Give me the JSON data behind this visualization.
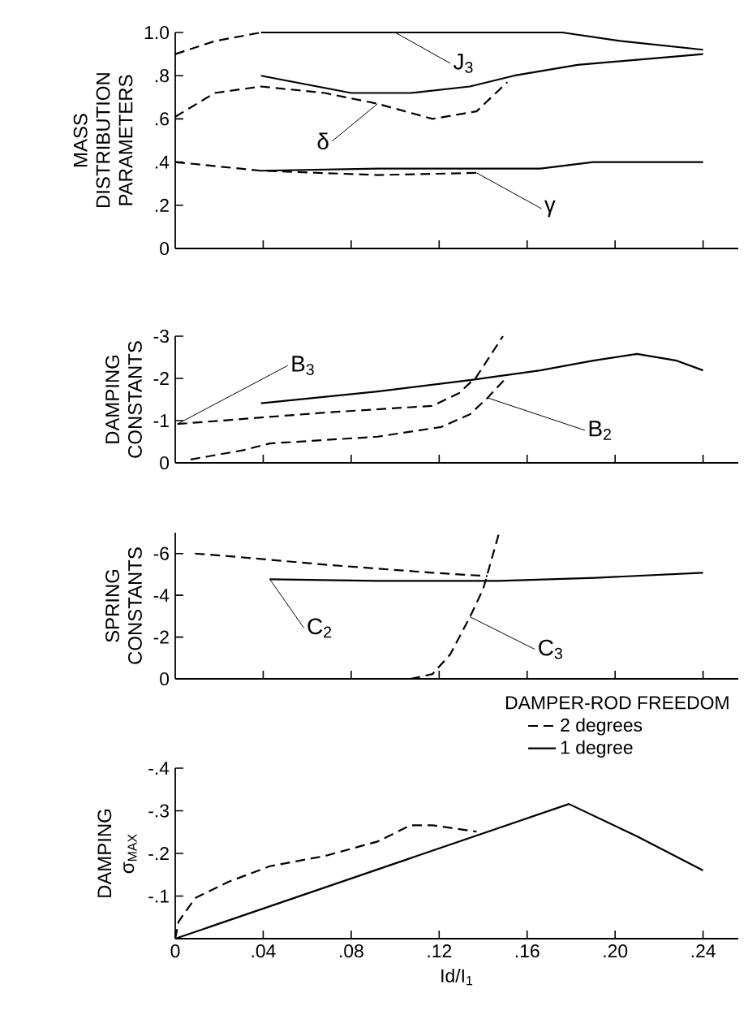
{
  "chart_data": [
    {
      "type": "line",
      "ylabel": "MASS DISTRIBUTION PARAMETERS",
      "xlim": [
        0,
        0.256
      ],
      "xticks": [
        {
          "value": 0.04,
          "label": null
        },
        {
          "value": 0.08,
          "label": null
        },
        {
          "value": 0.12,
          "label": null
        },
        {
          "value": 0.16,
          "label": null
        },
        {
          "value": 0.2,
          "label": null
        },
        {
          "value": 0.24,
          "label": null
        }
      ],
      "ylim": [
        0,
        1.0
      ],
      "yticks": [
        0,
        {
          "value": 0.2,
          "label": ".2"
        },
        {
          "value": 0.4,
          "label": ".4"
        },
        {
          "value": 0.6,
          "label": ".6"
        },
        {
          "value": 0.8,
          "label": ".8"
        },
        {
          "value": 1.0,
          "label": "1.0"
        }
      ],
      "tick_labels": "y",
      "series": [
        {
          "color": "#000000",
          "line_style": "dashed",
          "x": [
            0,
            0.018,
            0.039
          ],
          "values": [
            0.9,
            0.96,
            1.0
          ]
        },
        {
          "color": "#000000",
          "line_style": "solid",
          "x": [
            0.039,
            0.176,
            0.203,
            0.24
          ],
          "values": [
            1.0,
            1.0,
            0.96,
            0.92
          ]
        },
        {
          "color": "#000000",
          "line_style": "solid",
          "x": [
            0.039,
            0.08,
            0.107,
            0.134,
            0.154,
            0.183,
            0.24
          ],
          "values": [
            0.8,
            0.72,
            0.72,
            0.75,
            0.8,
            0.85,
            0.9
          ]
        },
        {
          "color": "#000000",
          "line_style": "dashed",
          "x": [
            0,
            0.018,
            0.039,
            0.068,
            0.092,
            0.117,
            0.137,
            0.151
          ],
          "values": [
            0.61,
            0.72,
            0.75,
            0.72,
            0.67,
            0.6,
            0.635,
            0.77
          ]
        },
        {
          "color": "#000000",
          "line_style": "solid",
          "x": [
            0.039,
            0.092,
            0.166,
            0.19,
            0.24
          ],
          "values": [
            0.36,
            0.37,
            0.37,
            0.4,
            0.4
          ]
        },
        {
          "color": "#000000",
          "line_style": "dashed",
          "x": [
            0,
            0.039,
            0.092,
            0.137
          ],
          "values": [
            0.4,
            0.36,
            0.34,
            0.35
          ]
        }
      ],
      "annotations": [
        {
          "text": "J$_{3}$",
          "x": 0.1,
          "y": 1.0
        },
        {
          "text": "δ",
          "x": 0.092,
          "y": 0.67
        },
        {
          "text": "γ",
          "x": 0.137,
          "y": 0.35
        }
      ]
    },
    {
      "type": "line",
      "ylabel": "DAMPING CONSTANTS",
      "xlim": [
        0,
        0.256
      ],
      "xticks": [
        {
          "value": 0.04,
          "label": null
        },
        {
          "value": 0.08,
          "label": null
        },
        {
          "value": 0.12,
          "label": null
        },
        {
          "value": 0.16,
          "label": null
        },
        {
          "value": 0.2,
          "label": null
        },
        {
          "value": 0.24,
          "label": null
        }
      ],
      "ylim": [
        0,
        -3
      ],
      "yticks": [
        0,
        -1,
        -2,
        -3
      ],
      "tick_labels": "y",
      "series": [
        {
          "color": "#000000",
          "line_style": "dashed",
          "x": [
            0.001,
            0.068,
            0.117,
            0.129,
            0.137,
            0.149
          ],
          "values": [
            -0.92,
            -1.19,
            -1.35,
            -1.65,
            -2.04,
            -3.0
          ]
        },
        {
          "color": "#000000",
          "line_style": "solid",
          "x": [
            0.039,
            0.092,
            0.134,
            0.166,
            0.19,
            0.21,
            0.228,
            0.24
          ],
          "values": [
            -1.41,
            -1.69,
            -1.96,
            -2.19,
            -2.42,
            -2.58,
            -2.42,
            -2.19
          ]
        },
        {
          "color": "#000000",
          "line_style": "dashed",
          "x": [
            0.007,
            0.031,
            0.043,
            0.092,
            0.121,
            0.134,
            0.142,
            0.151
          ],
          "values": [
            -0.08,
            -0.3,
            -0.46,
            -0.62,
            -0.85,
            -1.15,
            -1.54,
            -2.04
          ]
        }
      ],
      "annotations": [
        {
          "text": "B$_{3}$",
          "x": 0.001,
          "y": -0.92
        },
        {
          "text": "B$_{2}$",
          "x": 0.142,
          "y": -1.54
        }
      ]
    },
    {
      "type": "line",
      "ylabel": "SPRING CONSTANTS",
      "xlim": [
        0,
        0.256
      ],
      "xticks": [
        {
          "value": 0.04,
          "label": null
        },
        {
          "value": 0.08,
          "label": null
        },
        {
          "value": 0.12,
          "label": null
        },
        {
          "value": 0.16,
          "label": null
        },
        {
          "value": 0.2,
          "label": null
        },
        {
          "value": 0.24,
          "label": null
        }
      ],
      "ylim": [
        0,
        -7
      ],
      "yticks": [
        0,
        -2,
        -4,
        -6
      ],
      "tick_labels": "y",
      "series": [
        {
          "color": "#000000",
          "line_style": "dashed",
          "x": [
            0.009,
            0.026,
            0.068,
            0.117,
            0.142
          ],
          "values": [
            -6.0,
            -5.86,
            -5.47,
            -5.08,
            -4.92
          ]
        },
        {
          "color": "#000000",
          "line_style": "solid",
          "x": [
            0.043,
            0.092,
            0.147,
            0.191,
            0.24
          ],
          "values": [
            -4.77,
            -4.69,
            -4.69,
            -4.84,
            -5.08
          ]
        },
        {
          "color": "#000000",
          "line_style": "dashed",
          "x": [
            0.107,
            0.117,
            0.125,
            0.134,
            0.14,
            0.147
          ],
          "values": [
            0,
            -0.23,
            -1.17,
            -2.97,
            -4.3,
            -6.9
          ]
        }
      ],
      "annotations": [
        {
          "text": "C$_{2}$",
          "x": 0.043,
          "y": -4.77
        },
        {
          "text": "C$_{3}$",
          "x": 0.134,
          "y": -2.97
        }
      ]
    },
    {
      "type": "line",
      "ylabel": "DAMPING σ$_{MAX}$",
      "xlabel": "Id/I$_{1}$",
      "xlim": [
        0,
        0.256
      ],
      "xticks": [
        0,
        {
          "value": 0.04,
          "label": ".04"
        },
        {
          "value": 0.08,
          "label": ".08"
        },
        {
          "value": 0.12,
          "label": ".12"
        },
        {
          "value": 0.16,
          "label": ".16"
        },
        {
          "value": 0.2,
          "label": ".20"
        },
        {
          "value": 0.24,
          "label": ".24"
        }
      ],
      "ylim": [
        0,
        -0.4
      ],
      "yticks": [
        {
          "value": -0.1,
          "label": "-.1"
        },
        {
          "value": -0.2,
          "label": "-.2"
        },
        {
          "value": -0.3,
          "label": "-.3"
        },
        {
          "value": -0.4,
          "label": "-.4"
        }
      ],
      "legend": "top right",
      "legend_title": "DAMPER-ROD FREEDOM",
      "series": [
        {
          "name": "2 degrees",
          "color": "#000000",
          "line_style": "dashed",
          "x": [
            0,
            0.0015,
            0.009,
            0.024,
            0.043,
            0.068,
            0.092,
            0.107,
            0.117,
            0.137
          ],
          "values": [
            0,
            -0.04,
            -0.095,
            -0.133,
            -0.17,
            -0.194,
            -0.228,
            -0.266,
            -0.266,
            -0.251
          ]
        },
        {
          "name": "1 degree",
          "color": "#000000",
          "line_style": "solid",
          "x": [
            0,
            0.179,
            0.21,
            0.24
          ],
          "values": [
            0,
            -0.316,
            -0.24,
            -0.16
          ]
        }
      ]
    }
  ]
}
